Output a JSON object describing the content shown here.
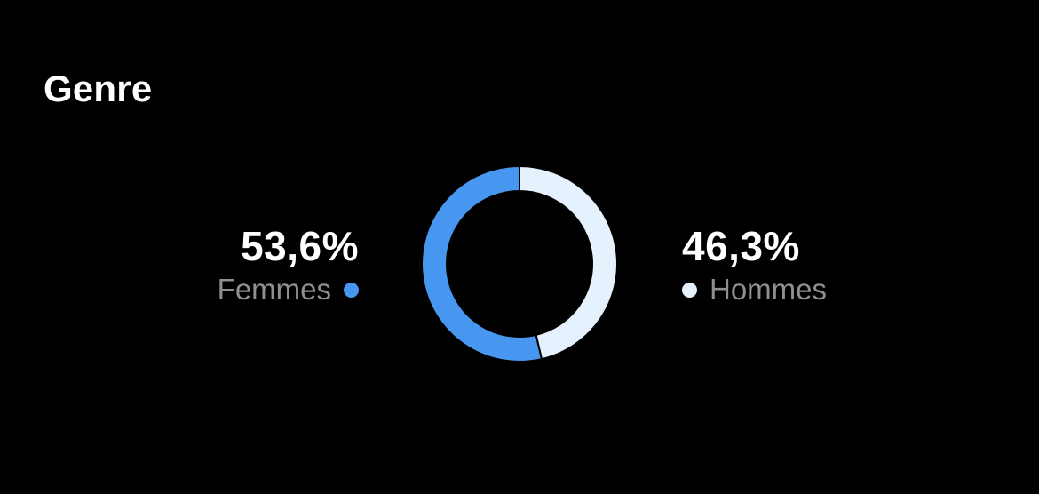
{
  "header": {
    "title": "Genre"
  },
  "stats": {
    "women": {
      "value": "53,6%",
      "label": "Femmes"
    },
    "men": {
      "value": "46,3%",
      "label": "Hommes"
    }
  },
  "colors": {
    "women": "#4797F0",
    "men": "#E6F1FE",
    "background": "#000000"
  },
  "chart_data": {
    "type": "pie",
    "title": "Genre",
    "series": [
      {
        "name": "Femmes",
        "value": 53.6
      },
      {
        "name": "Hommes",
        "value": 46.3
      }
    ]
  }
}
